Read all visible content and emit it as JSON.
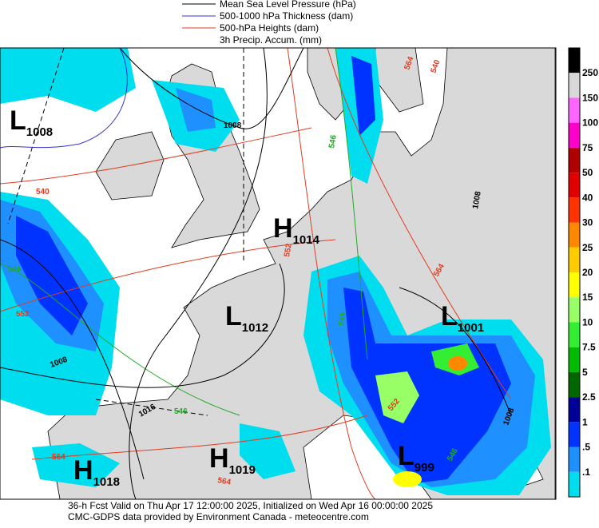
{
  "legend": [
    {
      "label": "Mean Sea Level Pressure (hPa)",
      "color": "#000000"
    },
    {
      "label": "500-1000 hPa Thickness (dam)",
      "color": "#3333cc"
    },
    {
      "label": "500-hPa Heights (dam)",
      "color": "#e03c20"
    },
    {
      "label": "3h Precip. Accum. (mm)",
      "color": null
    }
  ],
  "colorbar": {
    "top_color": "#000000",
    "levels": [
      {
        "label": "250",
        "color": "#d8d8d8"
      },
      {
        "label": "150",
        "color": "#ff66ff"
      },
      {
        "label": "100",
        "color": "#ff00cc"
      },
      {
        "label": "75",
        "color": "#b00000"
      },
      {
        "label": "50",
        "color": "#e00000"
      },
      {
        "label": "40",
        "color": "#ff3300"
      },
      {
        "label": "30",
        "color": "#ff8800"
      },
      {
        "label": "25",
        "color": "#ffcc00"
      },
      {
        "label": "20",
        "color": "#ffff00"
      },
      {
        "label": "15",
        "color": "#99ff66"
      },
      {
        "label": "10",
        "color": "#33ee33"
      },
      {
        "label": "7.5",
        "color": "#00bb00"
      },
      {
        "label": "5",
        "color": "#006600"
      },
      {
        "label": "2.5",
        "color": "#000099"
      },
      {
        "label": "1",
        "color": "#0033ff"
      },
      {
        "label": ".5",
        "color": "#1e90ff"
      },
      {
        "label": ".1",
        "color": "#00ddee"
      }
    ],
    "bottom_color": "#ffffff"
  },
  "centers": [
    {
      "kind": "L",
      "pressure": "1008"
    },
    {
      "kind": "H",
      "pressure": "1014"
    },
    {
      "kind": "L",
      "pressure": "1012"
    },
    {
      "kind": "L",
      "pressure": "1001"
    },
    {
      "kind": "H",
      "pressure": "1019"
    },
    {
      "kind": "H",
      "pressure": "1018"
    },
    {
      "kind": "L",
      "pressure": "999"
    }
  ],
  "contour_labels": [
    {
      "text": "540",
      "color": "#e03c20"
    },
    {
      "text": "564",
      "color": "#e03c20"
    },
    {
      "text": "540",
      "color": "#e03c20"
    },
    {
      "text": "546",
      "color": "#22aa22"
    },
    {
      "text": "1008",
      "color": "#000000"
    },
    {
      "text": "1008",
      "color": "#000000"
    },
    {
      "text": "552",
      "color": "#e03c20"
    },
    {
      "text": "564",
      "color": "#e03c20"
    },
    {
      "text": "552",
      "color": "#e03c20"
    },
    {
      "text": "546",
      "color": "#22aa22"
    },
    {
      "text": "546",
      "color": "#22aa22"
    },
    {
      "text": "1008",
      "color": "#000000"
    },
    {
      "text": "1016",
      "color": "#000000"
    },
    {
      "text": "546",
      "color": "#22aa22"
    },
    {
      "text": "552",
      "color": "#e03c20"
    },
    {
      "text": "564",
      "color": "#e03c20"
    },
    {
      "text": "564",
      "color": "#e03c20"
    },
    {
      "text": "546",
      "color": "#22aa22"
    },
    {
      "text": "1008",
      "color": "#000000"
    }
  ],
  "footer": [
    "36-h Fcst Valid on Thu Apr 17 12:00:00 2025, Initialized on Wed Apr 16 00:00:00 2025",
    "CMC-GDPS data provided by Environment Canada - meteocentre.com"
  ]
}
